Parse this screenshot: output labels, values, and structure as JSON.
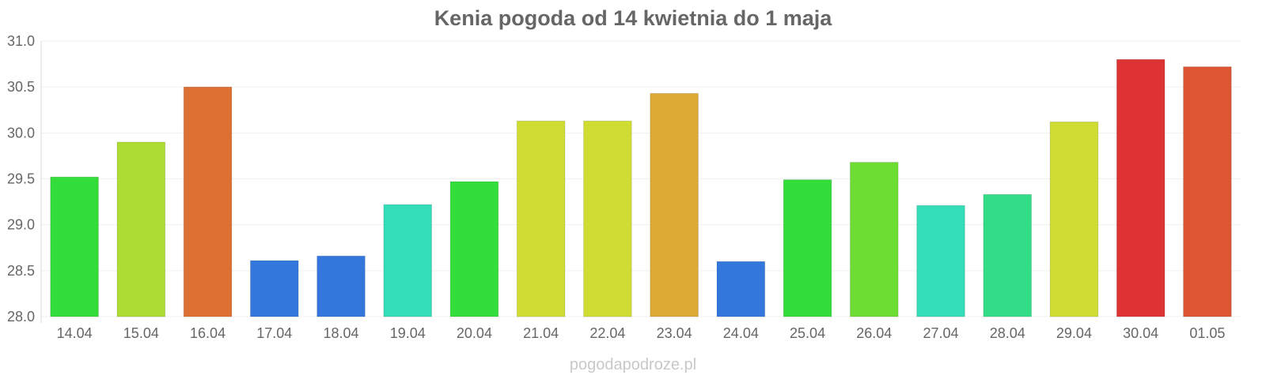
{
  "chart_data": {
    "type": "bar",
    "title": "Kenia pogoda od 14 kwietnia do 1 maja",
    "xlabel": "",
    "ylabel": "",
    "categories": [
      "14.04",
      "15.04",
      "16.04",
      "17.04",
      "18.04",
      "19.04",
      "20.04",
      "21.04",
      "22.04",
      "23.04",
      "24.04",
      "25.04",
      "26.04",
      "27.04",
      "28.04",
      "29.04",
      "30.04",
      "01.05"
    ],
    "values": [
      29.52,
      29.9,
      30.5,
      28.61,
      28.66,
      29.22,
      29.47,
      30.13,
      30.13,
      30.43,
      28.6,
      29.49,
      29.68,
      29.21,
      29.33,
      30.12,
      30.8,
      30.72
    ],
    "colors": [
      "#33dd3a",
      "#addd33",
      "#dd6f33",
      "#3377dd",
      "#3377dd",
      "#33ddb8",
      "#33dd3a",
      "#cfdd33",
      "#cfdd33",
      "#ddaa33",
      "#3377dd",
      "#33dd3a",
      "#6ddd33",
      "#33ddb8",
      "#33dd88",
      "#cfdd33",
      "#dd3333",
      "#dd5533"
    ],
    "ylim": [
      28.0,
      31.0
    ],
    "yticks": [
      "28.0",
      "28.5",
      "29.0",
      "29.5",
      "30.0",
      "30.5",
      "31.0"
    ],
    "grid": true,
    "legend": "none"
  },
  "watermark": "pogodapodroze.pl"
}
